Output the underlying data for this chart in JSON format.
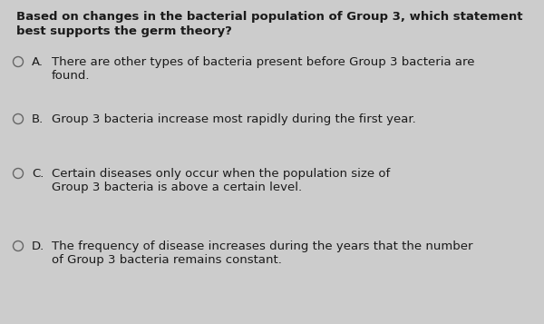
{
  "background_color": "#cccccc",
  "question_line1": "Based on changes in the bacterial population of Group 3, which statement",
  "question_line2": "best supports the germ theory?",
  "question_fontsize": 9.5,
  "options": [
    {
      "letter": "A.",
      "line1": "There are other types of bacteria present before Group 3 bacteria are",
      "line2": "found."
    },
    {
      "letter": "B.",
      "line1": "Group 3 bacteria increase most rapidly during the first year.",
      "line2": null
    },
    {
      "letter": "C.",
      "line1": "Certain diseases only occur when the population size of",
      "line2": "Group 3 bacteria is above a certain level."
    },
    {
      "letter": "D.",
      "line1": "The frequency of disease increases during the years that the number",
      "line2": "of Group 3 bacteria remains constant."
    }
  ],
  "option_fontsize": 9.5,
  "circle_color": "#666666",
  "text_color": "#1a1a1a",
  "fig_width": 6.0,
  "fig_height": 3.57,
  "dpi": 100
}
